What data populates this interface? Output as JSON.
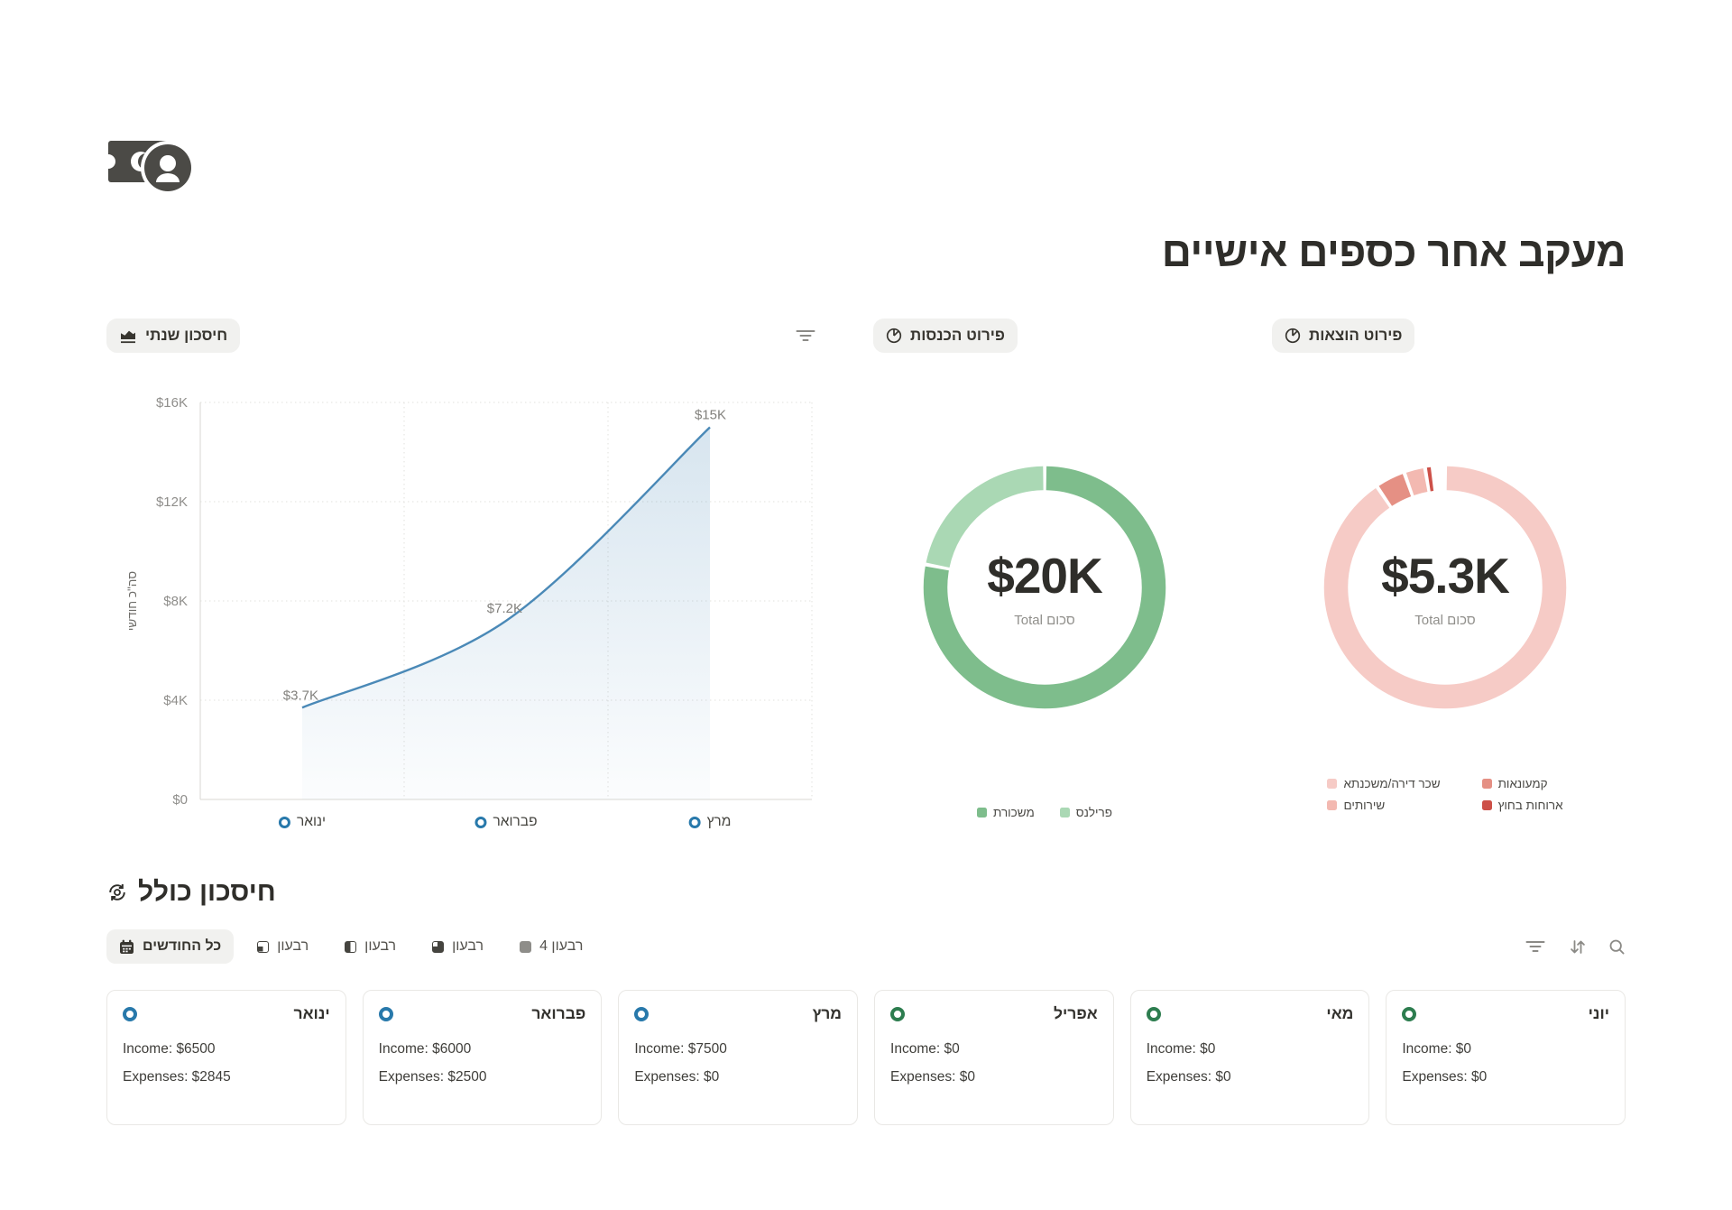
{
  "page_title": "מעקב אחר כספים אישיים",
  "logo_icon": "banknote-coin-icon",
  "sections": {
    "savings_chip": "חיסכון שנתי",
    "savings_icon": "area-chart-icon",
    "chart_filter_icon": "filter-icon",
    "income_chip": "פירוט הכנסות",
    "income_icon": "pie-chart-icon",
    "expenses_chip": "פירוט הוצאות",
    "expenses_icon": "pie-chart-icon"
  },
  "chart_data": [
    {
      "type": "line",
      "title": "חיסכון שנתי",
      "x": [
        "ינואר",
        "פברואר",
        "מרץ"
      ],
      "values": [
        3700,
        7200,
        15000
      ],
      "point_labels": [
        "$3.7K",
        "$7.2K",
        "$15K"
      ],
      "ylabel": "סה\"כ חודשי",
      "ylim": [
        0,
        16000
      ],
      "yticks": [
        0,
        4000,
        8000,
        12000,
        16000
      ],
      "ytick_labels": [
        "$0",
        "$4K",
        "$8K",
        "$12K",
        "$16K"
      ],
      "grid": "dotted",
      "area": true,
      "line_color": "#4a89b7",
      "marker_color": "#2879ab"
    },
    {
      "type": "donut",
      "title": "פירוט הכנסות",
      "center_value": "$20K",
      "center_label": "סכום Total",
      "legend_position": "bottom",
      "segments": [
        {
          "label": "משכורת",
          "fraction": 0.78,
          "color": "#7ebd8c"
        },
        {
          "label": "פרילנס",
          "fraction": 0.22,
          "color": "#aad8b4"
        }
      ]
    },
    {
      "type": "donut",
      "title": "פירוט הוצאות",
      "center_value": "$5.3K",
      "center_label": "סכום Total",
      "legend_position": "bottom",
      "segments": [
        {
          "label": "שכר דירה/משכנתא",
          "fraction": 0.905,
          "color": "#f6cbc6"
        },
        {
          "label": "קמעונאות",
          "fraction": 0.04,
          "color": "#e59084"
        },
        {
          "label": "שירותים",
          "fraction": 0.028,
          "color": "#f3b9b1"
        },
        {
          "label": "ארוחות בחוץ",
          "fraction": 0.01,
          "color": "#cd5048"
        }
      ]
    }
  ],
  "total_savings": {
    "heading": "חיסכון כולל",
    "heading_icon": "currency-exchange-icon",
    "tabs": [
      {
        "label": "כל החודשים",
        "icon": "calendar-icon",
        "selected": true
      },
      {
        "label": "רבעון",
        "icon": "quarter-1-icon",
        "selected": false
      },
      {
        "label": "רבעון",
        "icon": "quarter-2-icon",
        "selected": false
      },
      {
        "label": "רבעון",
        "icon": "quarter-3-icon",
        "selected": false
      },
      {
        "label": "רבעון 4",
        "icon": "quarter-4-icon",
        "selected": false
      }
    ],
    "toolbar_icons": [
      "filter-icon",
      "sort-icon",
      "search-icon"
    ],
    "cards": [
      {
        "month": "ינואר",
        "ring_color": "#2879ab",
        "income": "Income: $6500",
        "expenses": "Expenses: $2845"
      },
      {
        "month": "פברואר",
        "ring_color": "#2879ab",
        "income": "Income: $6000",
        "expenses": "Expenses: $2500"
      },
      {
        "month": "מרץ",
        "ring_color": "#2879ab",
        "income": "Income: $7500",
        "expenses": "Expenses: $0"
      },
      {
        "month": "אפריל",
        "ring_color": "#2d7d4f",
        "income": "Income: $0",
        "expenses": "Expenses: $0"
      },
      {
        "month": "מאי",
        "ring_color": "#2d7d4f",
        "income": "Income: $0",
        "expenses": "Expenses: $0"
      },
      {
        "month": "יוני",
        "ring_color": "#2d7d4f",
        "income": "Income: $0",
        "expenses": "Expenses: $0"
      }
    ]
  },
  "colors": {
    "accent_blue": "#4a89b7",
    "dot_blue": "#2879ab",
    "green_main": "#7ebd8c",
    "green_light": "#aad8b4",
    "pink_main": "#f6cbc6",
    "salmon": "#e59084",
    "salmon_light": "#f3b9b1",
    "red_dark": "#cd5048",
    "card_ring_green": "#2d7d4f",
    "chip_bg": "#f1f1ef",
    "text_dark": "#37352f",
    "text_gray": "#8f8e8b"
  }
}
